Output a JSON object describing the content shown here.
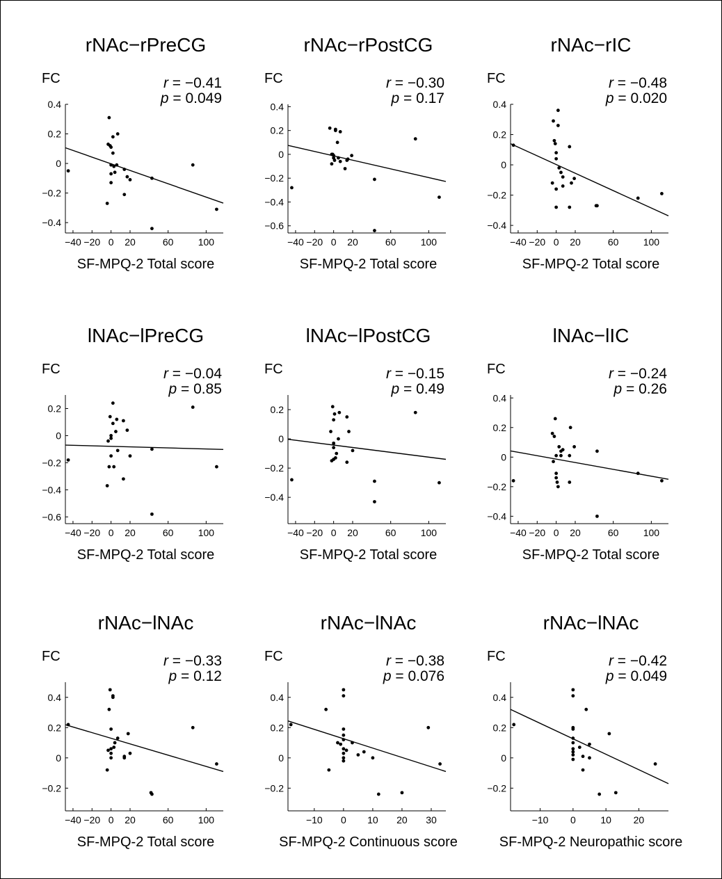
{
  "chart_data": [
    {
      "type": "scatter",
      "title": "rNAc−rPreCG",
      "ylabel": "FC",
      "xlabel": "SF-MPQ-2 Total score",
      "r_text": "= −0.41",
      "p_text": "= 0.049",
      "xlim": [
        -48,
        118
      ],
      "ylim": [
        -0.47,
        0.4
      ],
      "xticks": [
        -40,
        -20,
        0,
        20,
        60,
        100
      ],
      "xtick_labels": [
        "−40",
        "−20",
        "0",
        "20",
        "60",
        "100"
      ],
      "yticks": [
        0.4,
        0.2,
        0,
        -0.2,
        -0.4
      ],
      "ytick_labels": [
        "0.4",
        "0.2",
        "0",
        "−0.2",
        "−0.4"
      ],
      "fit": [
        [
          -48,
          0.106
        ],
        [
          118,
          -0.268
        ]
      ],
      "points": [
        [
          -45,
          -0.05
        ],
        [
          -4,
          -0.27
        ],
        [
          -3,
          0.13
        ],
        [
          -2,
          0.31
        ],
        [
          -1,
          0.12
        ],
        [
          0,
          0.11
        ],
        [
          0,
          -0.01
        ],
        [
          0,
          -0.07
        ],
        [
          0,
          -0.13
        ],
        [
          2,
          0.18
        ],
        [
          2,
          0.07
        ],
        [
          3,
          -0.02
        ],
        [
          4,
          -0.06
        ],
        [
          6,
          -0.01
        ],
        [
          7,
          0.2
        ],
        [
          14,
          -0.04
        ],
        [
          14,
          -0.21
        ],
        [
          17,
          -0.09
        ],
        [
          20,
          -0.11
        ],
        [
          43,
          -0.1
        ],
        [
          43,
          -0.44
        ],
        [
          86,
          -0.01
        ],
        [
          111,
          -0.31
        ]
      ]
    },
    {
      "type": "scatter",
      "title": "rNAc−rPostCG",
      "ylabel": "FC",
      "xlabel": "SF-MPQ-2 Total score",
      "r_text": "= −0.30",
      "p_text": "= 0.17",
      "xlim": [
        -48,
        118
      ],
      "ylim": [
        -0.66,
        0.42
      ],
      "xticks": [
        -40,
        -20,
        0,
        20,
        60,
        100
      ],
      "xtick_labels": [
        "−40",
        "−20",
        "0",
        "20",
        "60",
        "100"
      ],
      "yticks": [
        0.4,
        0.2,
        0,
        -0.2,
        -0.4,
        -0.6
      ],
      "ytick_labels": [
        "0.4",
        "0.2",
        "0",
        "−0.2",
        "−0.4",
        "−0.6"
      ],
      "fit": [
        [
          -48,
          0.075
        ],
        [
          118,
          -0.228
        ]
      ],
      "points": [
        [
          -44,
          -0.28
        ],
        [
          -4,
          0.22
        ],
        [
          -2,
          0.0
        ],
        [
          -2,
          -0.08
        ],
        [
          -1,
          0.0
        ],
        [
          0,
          -0.01
        ],
        [
          0,
          -0.03
        ],
        [
          1,
          -0.05
        ],
        [
          2,
          0.21
        ],
        [
          2,
          0.2
        ],
        [
          4,
          0.1
        ],
        [
          5,
          -0.03
        ],
        [
          7,
          0.19
        ],
        [
          7,
          -0.06
        ],
        [
          12,
          -0.12
        ],
        [
          14,
          -0.05
        ],
        [
          15,
          -0.04
        ],
        [
          19,
          -0.01
        ],
        [
          43,
          -0.21
        ],
        [
          43,
          -0.64
        ],
        [
          86,
          0.13
        ],
        [
          111,
          -0.36
        ]
      ]
    },
    {
      "type": "scatter",
      "title": "rNAc−rIC",
      "ylabel": "FC",
      "xlabel": "SF-MPQ-2 Total score",
      "r_text": "= −0.48",
      "p_text": "= 0.020",
      "xlim": [
        -48,
        118
      ],
      "ylim": [
        -0.45,
        0.4
      ],
      "xticks": [
        -40,
        -20,
        0,
        20,
        60,
        100
      ],
      "xtick_labels": [
        "−40",
        "−20",
        "0",
        "20",
        "60",
        "100"
      ],
      "yticks": [
        0.4,
        0.2,
        0,
        -0.2,
        -0.4
      ],
      "ytick_labels": [
        "0.4",
        "0.2",
        "0",
        "−0.2",
        "−0.4"
      ],
      "fit": [
        [
          -48,
          0.14
        ],
        [
          118,
          -0.337
        ]
      ],
      "points": [
        [
          -45,
          0.13
        ],
        [
          -4,
          -0.12
        ],
        [
          -3,
          0.29
        ],
        [
          -2,
          0.16
        ],
        [
          -1,
          0.14
        ],
        [
          0,
          0.08
        ],
        [
          0,
          0.04
        ],
        [
          0,
          -0.16
        ],
        [
          0,
          -0.28
        ],
        [
          2,
          0.36
        ],
        [
          2,
          0.26
        ],
        [
          3,
          -0.02
        ],
        [
          5,
          -0.05
        ],
        [
          7,
          -0.08
        ],
        [
          7,
          -0.14
        ],
        [
          14,
          0.12
        ],
        [
          14,
          -0.28
        ],
        [
          16,
          -0.12
        ],
        [
          19,
          -0.09
        ],
        [
          42,
          -0.27
        ],
        [
          43,
          -0.27
        ],
        [
          86,
          -0.22
        ],
        [
          111,
          -0.19
        ]
      ]
    },
    {
      "type": "scatter",
      "title": "lNAc−lPreCG",
      "ylabel": "FC",
      "xlabel": "SF-MPQ-2 Total score",
      "r_text": "= −0.04",
      "p_text": "= 0.85",
      "xlim": [
        -48,
        118
      ],
      "ylim": [
        -0.65,
        0.3
      ],
      "xticks": [
        -40,
        -20,
        0,
        20,
        60,
        100
      ],
      "xtick_labels": [
        "−40",
        "−20",
        "0",
        "20",
        "60",
        "100"
      ],
      "yticks": [
        0.2,
        0,
        -0.2,
        -0.4,
        -0.6
      ],
      "ytick_labels": [
        "0.2",
        "0",
        "−0.2",
        "−0.4",
        "−0.6"
      ],
      "fit": [
        [
          -48,
          -0.07
        ],
        [
          118,
          -0.102
        ]
      ],
      "points": [
        [
          -45,
          -0.18
        ],
        [
          -4,
          -0.37
        ],
        [
          -3,
          -0.04
        ],
        [
          -2,
          -0.23
        ],
        [
          -1,
          0.14
        ],
        [
          0,
          0.0
        ],
        [
          0,
          -0.02
        ],
        [
          0,
          -0.15
        ],
        [
          2,
          0.24
        ],
        [
          2,
          0.09
        ],
        [
          3,
          -0.23
        ],
        [
          5,
          0.03
        ],
        [
          6,
          0.12
        ],
        [
          7,
          -0.11
        ],
        [
          13,
          0.11
        ],
        [
          13,
          -0.32
        ],
        [
          17,
          0.04
        ],
        [
          20,
          -0.15
        ],
        [
          43,
          -0.1
        ],
        [
          43,
          -0.58
        ],
        [
          86,
          0.21
        ],
        [
          111,
          -0.23
        ]
      ]
    },
    {
      "type": "scatter",
      "title": "lNAc−lPostCG",
      "ylabel": "FC",
      "xlabel": "SF-MPQ-2 Total score",
      "r_text": "= −0.15",
      "p_text": "= 0.49",
      "xlim": [
        -48,
        118
      ],
      "ylim": [
        -0.58,
        0.3
      ],
      "xticks": [
        -40,
        -20,
        0,
        20,
        60,
        100
      ],
      "xtick_labels": [
        "−40",
        "−20",
        "0",
        "20",
        "60",
        "100"
      ],
      "yticks": [
        0.2,
        0,
        -0.2,
        -0.4
      ],
      "ytick_labels": [
        "0.2",
        "0",
        "−0.2",
        "−0.4"
      ],
      "fit": [
        [
          -48,
          -0.003
        ],
        [
          118,
          -0.14
        ]
      ],
      "points": [
        [
          -44,
          -0.28
        ],
        [
          -3,
          0.05
        ],
        [
          -2,
          -0.15
        ],
        [
          -1,
          0.22
        ],
        [
          0,
          0.13
        ],
        [
          0,
          -0.03
        ],
        [
          0,
          -0.06
        ],
        [
          0,
          -0.14
        ],
        [
          1,
          0.17
        ],
        [
          2,
          -0.13
        ],
        [
          3,
          -0.1
        ],
        [
          5,
          0.0
        ],
        [
          6,
          0.18
        ],
        [
          14,
          0.15
        ],
        [
          14,
          -0.16
        ],
        [
          16,
          0.05
        ],
        [
          20,
          -0.08
        ],
        [
          43,
          -0.29
        ],
        [
          43,
          -0.43
        ],
        [
          86,
          0.18
        ],
        [
          111,
          -0.3
        ]
      ]
    },
    {
      "type": "scatter",
      "title": "lNAc−lIC",
      "ylabel": "FC",
      "xlabel": "SF-MPQ-2 Total score",
      "r_text": "= −0.24",
      "p_text": "= 0.26",
      "xlim": [
        -48,
        118
      ],
      "ylim": [
        -0.45,
        0.42
      ],
      "xticks": [
        -40,
        -20,
        0,
        20,
        60,
        100
      ],
      "xtick_labels": [
        "−40",
        "−20",
        "0",
        "20",
        "60",
        "100"
      ],
      "yticks": [
        0.4,
        0.2,
        0,
        -0.2,
        -0.4
      ],
      "ytick_labels": [
        "0.4",
        "0.2",
        "0",
        "−0.2",
        "−0.4"
      ],
      "fit": [
        [
          -48,
          0.042
        ],
        [
          118,
          -0.15
        ]
      ],
      "points": [
        [
          -45,
          -0.16
        ],
        [
          -4,
          0.16
        ],
        [
          -3,
          -0.03
        ],
        [
          -2,
          0.14
        ],
        [
          -1,
          0.26
        ],
        [
          0,
          0.01
        ],
        [
          0,
          -0.11
        ],
        [
          0,
          -0.14
        ],
        [
          1,
          -0.17
        ],
        [
          2,
          -0.2
        ],
        [
          3,
          0.07
        ],
        [
          5,
          0.04
        ],
        [
          5,
          0.01
        ],
        [
          7,
          0.05
        ],
        [
          14,
          0.01
        ],
        [
          14,
          -0.17
        ],
        [
          15,
          0.2
        ],
        [
          19,
          0.07
        ],
        [
          43,
          0.04
        ],
        [
          43,
          -0.4
        ],
        [
          86,
          -0.11
        ],
        [
          111,
          -0.16
        ]
      ]
    },
    {
      "type": "scatter",
      "title": "rNAc−lNAc",
      "ylabel": "FC",
      "xlabel": "SF-MPQ-2 Total score",
      "r_text": "= −0.33",
      "p_text": "= 0.12",
      "xlim": [
        -48,
        118
      ],
      "ylim": [
        -0.35,
        0.5
      ],
      "xticks": [
        -40,
        -20,
        0,
        20,
        60,
        100
      ],
      "xtick_labels": [
        "−40",
        "−20",
        "0",
        "20",
        "60",
        "100"
      ],
      "yticks": [
        0.4,
        0.2,
        0,
        -0.2
      ],
      "ytick_labels": [
        "0.4",
        "0.2",
        "0",
        "−0.2"
      ],
      "fit": [
        [
          -48,
          0.219
        ],
        [
          118,
          -0.09
        ]
      ],
      "points": [
        [
          -45,
          0.22
        ],
        [
          -4,
          -0.08
        ],
        [
          -3,
          0.05
        ],
        [
          -2,
          0.32
        ],
        [
          -1,
          0.45
        ],
        [
          0,
          0.19
        ],
        [
          0,
          0.06
        ],
        [
          0,
          0.03
        ],
        [
          0,
          0.0
        ],
        [
          2,
          0.4
        ],
        [
          2,
          0.41
        ],
        [
          3,
          0.07
        ],
        [
          4,
          0.1
        ],
        [
          7,
          0.13
        ],
        [
          14,
          0.01
        ],
        [
          14,
          0.0
        ],
        [
          18,
          0.16
        ],
        [
          20,
          0.03
        ],
        [
          42,
          -0.23
        ],
        [
          43,
          -0.24
        ],
        [
          86,
          0.2
        ],
        [
          111,
          -0.04
        ]
      ]
    },
    {
      "type": "scatter",
      "title": "rNAc−lNAc",
      "ylabel": "FC",
      "xlabel": "SF-MPQ-2 Continuous score",
      "r_text": "= −0.38",
      "p_text": "= 0.076",
      "xlim": [
        -19,
        35
      ],
      "ylim": [
        -0.35,
        0.5
      ],
      "xticks": [
        -10,
        0,
        10,
        20,
        30
      ],
      "xtick_labels": [
        "−10",
        "0",
        "10",
        "20",
        "30"
      ],
      "yticks": [
        0.4,
        0.2,
        0,
        -0.2
      ],
      "ytick_labels": [
        "0.4",
        "0.2",
        "0",
        "−0.2"
      ],
      "fit": [
        [
          -19,
          0.244
        ],
        [
          35,
          -0.09
        ]
      ],
      "points": [
        [
          -18,
          0.22
        ],
        [
          -6,
          0.32
        ],
        [
          -5,
          -0.08
        ],
        [
          -2,
          0.1
        ],
        [
          -1,
          0.09
        ],
        [
          0,
          0.45
        ],
        [
          0,
          0.41
        ],
        [
          0,
          0.19
        ],
        [
          0,
          0.15
        ],
        [
          0,
          0.12
        ],
        [
          0,
          0.06
        ],
        [
          0,
          0.03
        ],
        [
          0,
          0.0
        ],
        [
          0,
          -0.02
        ],
        [
          1,
          0.05
        ],
        [
          3,
          0.1
        ],
        [
          5,
          0.02
        ],
        [
          7,
          0.04
        ],
        [
          10,
          0.0
        ],
        [
          12,
          -0.24
        ],
        [
          20,
          -0.23
        ],
        [
          29,
          0.2
        ],
        [
          33,
          -0.04
        ]
      ]
    },
    {
      "type": "scatter",
      "title": "rNAc−lNAc",
      "ylabel": "FC",
      "xlabel": "SF-MPQ-2 Neuropathic score",
      "r_text": "= −0.42",
      "p_text": "= 0.049",
      "xlim": [
        -19,
        29
      ],
      "ylim": [
        -0.35,
        0.5
      ],
      "xticks": [
        -10,
        0,
        10,
        20
      ],
      "xtick_labels": [
        "−10",
        "0",
        "10",
        "20"
      ],
      "yticks": [
        0.4,
        0.2,
        0,
        -0.2
      ],
      "ytick_labels": [
        "0.4",
        "0.2",
        "0",
        "−0.2"
      ],
      "fit": [
        [
          -19,
          0.32
        ],
        [
          29,
          -0.17
        ]
      ],
      "points": [
        [
          -18,
          0.22
        ],
        [
          0,
          0.45
        ],
        [
          0,
          0.41
        ],
        [
          0,
          0.2
        ],
        [
          0,
          0.19
        ],
        [
          0,
          0.13
        ],
        [
          0,
          0.1
        ],
        [
          0,
          0.06
        ],
        [
          0,
          0.04
        ],
        [
          0,
          0.02
        ],
        [
          0,
          -0.01
        ],
        [
          2,
          0.07
        ],
        [
          3,
          0.01
        ],
        [
          3,
          -0.08
        ],
        [
          4,
          0.32
        ],
        [
          5,
          0.09
        ],
        [
          5,
          0.0
        ],
        [
          8,
          -0.24
        ],
        [
          11,
          0.16
        ],
        [
          13,
          -0.23
        ],
        [
          25,
          -0.04
        ]
      ]
    }
  ]
}
